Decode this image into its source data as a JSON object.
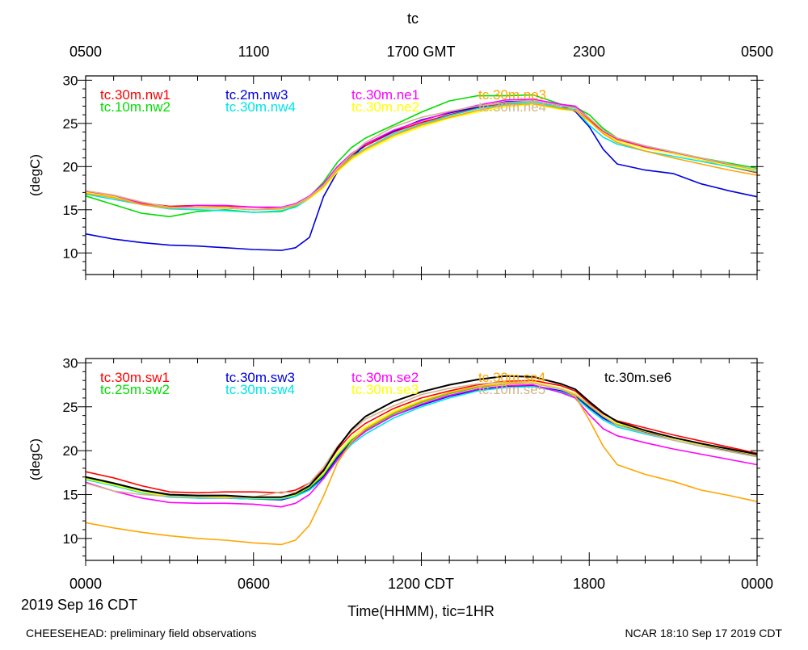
{
  "page": {
    "title": "tc",
    "top_axis_ticks": [
      "0500",
      "1100",
      "1700 GMT",
      "2300",
      "0500"
    ],
    "bottom_axis_ticks": [
      "0000",
      "0600",
      "1200 CDT",
      "1800",
      "0000"
    ],
    "date_label": "2019 Sep 16 CDT",
    "xlabel": "Time(HHMM), tic=1HR",
    "footer_left": "CHEESEHEAD: preliminary field observations",
    "footer_right": "NCAR 18:10 Sep 17 2019 CDT"
  },
  "chart_data": [
    {
      "type": "line",
      "ylabel": "(degC)",
      "ylim": [
        7.5,
        30.5
      ],
      "yticks": [
        10,
        15,
        20,
        25,
        30
      ],
      "xlim": [
        0,
        24
      ],
      "x": [
        0,
        1,
        2,
        3,
        4,
        5,
        6,
        7,
        7.5,
        8,
        8.5,
        9,
        9.5,
        10,
        11,
        12,
        13,
        14,
        15,
        16,
        17,
        17.5,
        18,
        18.5,
        19,
        20,
        21,
        22,
        23,
        24
      ],
      "series": [
        {
          "name": "tc.30m.nw1",
          "color": "#ff0000",
          "values": [
            17.0,
            16.5,
            15.8,
            15.4,
            15.5,
            15.4,
            15.3,
            15.2,
            15.7,
            16.5,
            17.8,
            19.8,
            21.3,
            22.4,
            24.0,
            25.1,
            26.0,
            26.8,
            27.3,
            27.6,
            27.0,
            26.8,
            25.5,
            24.0,
            23.1,
            22.2,
            21.5,
            20.8,
            20.0,
            19.3
          ]
        },
        {
          "name": "tc.10m.nw2",
          "color": "#00dd00",
          "values": [
            16.6,
            15.6,
            14.6,
            14.2,
            14.8,
            15.0,
            14.7,
            14.8,
            15.4,
            16.5,
            18.2,
            20.5,
            22.2,
            23.3,
            24.8,
            26.3,
            27.6,
            28.2,
            28.2,
            28.3,
            27.2,
            26.9,
            26.0,
            24.4,
            23.3,
            22.4,
            21.7,
            21.0,
            20.4,
            19.8
          ]
        },
        {
          "name": "tc.2m.nw3",
          "color": "#0000dd",
          "values": [
            12.2,
            11.6,
            11.2,
            10.9,
            10.8,
            10.6,
            10.4,
            10.3,
            10.6,
            11.8,
            16.5,
            19.4,
            21.0,
            22.6,
            24.1,
            25.4,
            26.2,
            26.9,
            27.5,
            27.6,
            27.0,
            26.4,
            24.6,
            22.0,
            20.3,
            19.6,
            19.2,
            18.0,
            17.2,
            16.5
          ]
        },
        {
          "name": "tc.30m.nw4",
          "color": "#00e5e5",
          "values": [
            16.8,
            16.2,
            15.6,
            15.1,
            15.0,
            14.9,
            14.7,
            14.9,
            15.3,
            16.3,
            17.6,
            19.6,
            21.1,
            22.1,
            23.8,
            24.9,
            25.9,
            26.7,
            27.2,
            27.5,
            26.8,
            26.6,
            24.8,
            23.4,
            22.6,
            21.8,
            21.2,
            20.6,
            20.0,
            19.4
          ]
        },
        {
          "name": "tc.30m.ne1",
          "color": "#ff00ff",
          "values": [
            17.1,
            16.6,
            15.7,
            15.2,
            15.5,
            15.5,
            15.3,
            15.3,
            15.7,
            16.6,
            18.0,
            20.0,
            21.5,
            22.6,
            24.2,
            25.3,
            26.3,
            27.1,
            27.7,
            27.8,
            27.2,
            27.0,
            25.6,
            24.1,
            23.2,
            22.3,
            21.6,
            20.9,
            20.2,
            19.5
          ]
        },
        {
          "name": "tc.30m.ne2",
          "color": "#ffff00",
          "values": [
            17.0,
            16.5,
            15.6,
            15.2,
            15.3,
            15.3,
            15.0,
            15.1,
            15.5,
            16.3,
            17.5,
            19.4,
            20.8,
            21.8,
            23.4,
            24.6,
            25.6,
            26.3,
            26.9,
            27.2,
            26.6,
            26.5,
            25.2,
            23.9,
            23.0,
            22.1,
            21.5,
            20.8,
            20.1,
            19.5
          ]
        },
        {
          "name": "tc.30m.ne3",
          "color": "#ffa500",
          "values": [
            16.9,
            16.4,
            15.6,
            15.2,
            15.2,
            15.2,
            15.0,
            15.1,
            15.5,
            16.4,
            17.7,
            19.6,
            21.0,
            22.0,
            23.6,
            24.8,
            25.7,
            26.5,
            27.1,
            27.3,
            26.7,
            26.5,
            25.3,
            23.8,
            22.8,
            21.8,
            21.0,
            20.3,
            19.6,
            19.0
          ]
        },
        {
          "name": "tc.30m.ne4",
          "color": "#d2b48c",
          "values": [
            17.2,
            16.7,
            15.9,
            15.3,
            15.2,
            15.2,
            15.0,
            15.2,
            15.6,
            16.5,
            17.8,
            19.8,
            21.4,
            22.8,
            24.6,
            25.7,
            26.4,
            27.0,
            27.4,
            27.6,
            27.0,
            26.8,
            25.6,
            24.2,
            23.3,
            22.4,
            21.7,
            21.0,
            20.3,
            19.6
          ]
        }
      ]
    },
    {
      "type": "line",
      "ylabel": "(degC)",
      "ylim": [
        7.5,
        30.5
      ],
      "yticks": [
        10,
        15,
        20,
        25,
        30
      ],
      "xlim": [
        0,
        24
      ],
      "x": [
        0,
        1,
        2,
        3,
        4,
        5,
        6,
        7,
        7.5,
        8,
        8.5,
        9,
        9.5,
        10,
        11,
        12,
        13,
        14,
        15,
        16,
        17,
        17.5,
        18,
        18.5,
        19,
        20,
        21,
        22,
        23,
        24
      ],
      "series": [
        {
          "name": "tc.30m.sw1",
          "color": "#ff0000",
          "values": [
            17.6,
            16.9,
            16.0,
            15.3,
            15.2,
            15.3,
            15.3,
            15.2,
            15.5,
            16.3,
            17.8,
            20.1,
            21.9,
            23.1,
            24.8,
            26.0,
            26.8,
            27.5,
            27.9,
            28.0,
            27.4,
            26.8,
            25.4,
            24.2,
            23.4,
            22.6,
            21.8,
            21.1,
            20.4,
            19.7
          ]
        },
        {
          "name": "tc.25m.sw2",
          "color": "#00dd00",
          "values": [
            16.9,
            16.2,
            15.5,
            14.9,
            14.8,
            14.8,
            14.6,
            14.5,
            14.9,
            15.8,
            17.2,
            19.4,
            21.2,
            22.4,
            24.2,
            25.5,
            26.5,
            27.2,
            27.6,
            27.7,
            27.0,
            26.4,
            25.0,
            23.8,
            23.0,
            22.2,
            21.4,
            20.7,
            20.0,
            19.4
          ]
        },
        {
          "name": "tc.30m.sw3",
          "color": "#0000dd",
          "values": [
            16.8,
            16.1,
            15.3,
            14.8,
            14.6,
            14.6,
            14.5,
            14.4,
            14.8,
            15.6,
            17.0,
            19.2,
            21.0,
            22.2,
            24.0,
            25.2,
            26.2,
            26.9,
            27.3,
            27.4,
            26.8,
            26.2,
            24.9,
            23.7,
            22.9,
            22.1,
            21.4,
            20.7,
            20.0,
            19.4
          ]
        },
        {
          "name": "tc.30m.sw4",
          "color": "#00e5e5",
          "values": [
            16.7,
            16.0,
            15.2,
            14.7,
            14.6,
            14.6,
            14.5,
            14.5,
            14.8,
            15.5,
            16.8,
            18.9,
            20.7,
            21.9,
            23.7,
            25.0,
            26.0,
            26.8,
            27.2,
            27.3,
            26.7,
            26.1,
            24.7,
            23.5,
            22.7,
            21.9,
            21.2,
            20.5,
            19.9,
            19.3
          ]
        },
        {
          "name": "tc.30m.se2",
          "color": "#ff00ff",
          "values": [
            16.4,
            15.4,
            14.6,
            14.1,
            14.0,
            14.0,
            13.9,
            13.6,
            14.0,
            15.0,
            16.8,
            19.0,
            20.9,
            22.2,
            24.0,
            25.3,
            26.3,
            27.0,
            27.4,
            27.5,
            26.6,
            26.0,
            24.1,
            22.5,
            21.7,
            20.9,
            20.2,
            19.6,
            19.0,
            18.4
          ]
        },
        {
          "name": "tc.30m.se3",
          "color": "#ffff00",
          "values": [
            16.8,
            16.1,
            15.3,
            14.8,
            14.7,
            14.7,
            14.6,
            14.6,
            15.0,
            15.9,
            17.4,
            19.7,
            21.5,
            22.7,
            24.5,
            25.7,
            26.6,
            27.3,
            27.7,
            27.8,
            27.1,
            26.5,
            25.2,
            24.0,
            23.1,
            22.2,
            21.4,
            20.7,
            20.1,
            19.5
          ]
        },
        {
          "name": "tc.30m.se4",
          "color": "#ffa500",
          "values": [
            11.8,
            11.2,
            10.7,
            10.3,
            10.0,
            9.8,
            9.5,
            9.3,
            9.8,
            11.5,
            14.8,
            18.6,
            21.0,
            22.5,
            24.3,
            25.6,
            26.6,
            27.3,
            27.6,
            27.7,
            27.0,
            26.2,
            23.5,
            20.5,
            18.4,
            17.3,
            16.5,
            15.5,
            14.9,
            14.2
          ]
        },
        {
          "name": "tc.10m.se5",
          "color": "#d2b48c",
          "values": [
            16.3,
            15.4,
            15.0,
            14.8,
            14.7,
            14.6,
            14.7,
            15.3,
            15.2,
            16.3,
            18.1,
            20.5,
            22.2,
            23.6,
            25.1,
            26.4,
            27.1,
            27.6,
            27.8,
            27.7,
            27.0,
            26.4,
            25.2,
            23.9,
            22.9,
            22.0,
            21.2,
            20.5,
            19.9,
            19.3
          ]
        },
        {
          "name": "tc.30m.se6",
          "color": "#000000",
          "values": [
            17.0,
            16.3,
            15.5,
            15.0,
            14.9,
            14.9,
            14.7,
            14.7,
            15.1,
            16.0,
            17.7,
            20.3,
            22.4,
            23.9,
            25.6,
            26.7,
            27.5,
            28.1,
            28.5,
            28.4,
            27.6,
            27.0,
            25.6,
            24.3,
            23.3,
            22.3,
            21.5,
            20.8,
            20.2,
            19.6
          ]
        }
      ]
    }
  ]
}
